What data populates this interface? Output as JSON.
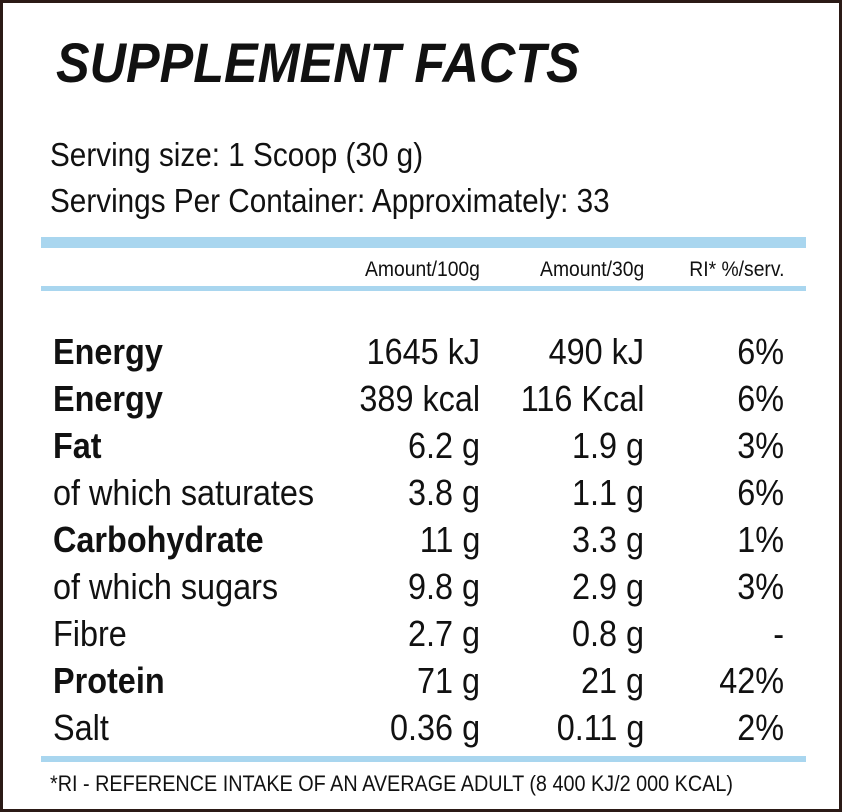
{
  "title": "SUPPLEMENT FACTS",
  "serving_size": "Serving size: 1 Scoop (30 g)",
  "servings_per_container": "Servings Per Container: Approximately: 33",
  "headers": {
    "col1": "Amount/100g",
    "col2": "Amount/30g",
    "col3": "RI* %/serv."
  },
  "rows": [
    {
      "name": "Energy",
      "per100": "1645 kJ",
      "per30": "490 kJ",
      "ri": "6%",
      "bold": true
    },
    {
      "name": "Energy",
      "per100": "389 kcal",
      "per30": "116 Kcal",
      "ri": "6%",
      "bold": true
    },
    {
      "name": "Fat",
      "per100": "6.2 g",
      "per30": "1.9 g",
      "ri": "3%",
      "bold": true
    },
    {
      "name": "of which saturates",
      "per100": "3.8 g",
      "per30": "1.1 g",
      "ri": "6%",
      "bold": false
    },
    {
      "name": "Carbohydrate",
      "per100": "11 g",
      "per30": "3.3 g",
      "ri": "1%",
      "bold": true
    },
    {
      "name": "of which sugars",
      "per100": "9.8 g",
      "per30": "2.9 g",
      "ri": "3%",
      "bold": false
    },
    {
      "name": "Fibre",
      "per100": "2.7 g",
      "per30": "0.8 g",
      "ri": "-",
      "bold": false
    },
    {
      "name": "Protein",
      "per100": "71 g",
      "per30": "21 g",
      "ri": "42%",
      "bold": true
    },
    {
      "name": "Salt",
      "per100": "0.36 g",
      "per30": "0.11 g",
      "ri": "2%",
      "bold": false
    }
  ],
  "footnote": "*RI - REFERENCE INTAKE OF AN AVERAGE ADULT (8 400 KJ/2 000 KCAL)",
  "colors": {
    "rule": "#a9d6ef",
    "border": "#2b1a16",
    "text": "#111111"
  }
}
